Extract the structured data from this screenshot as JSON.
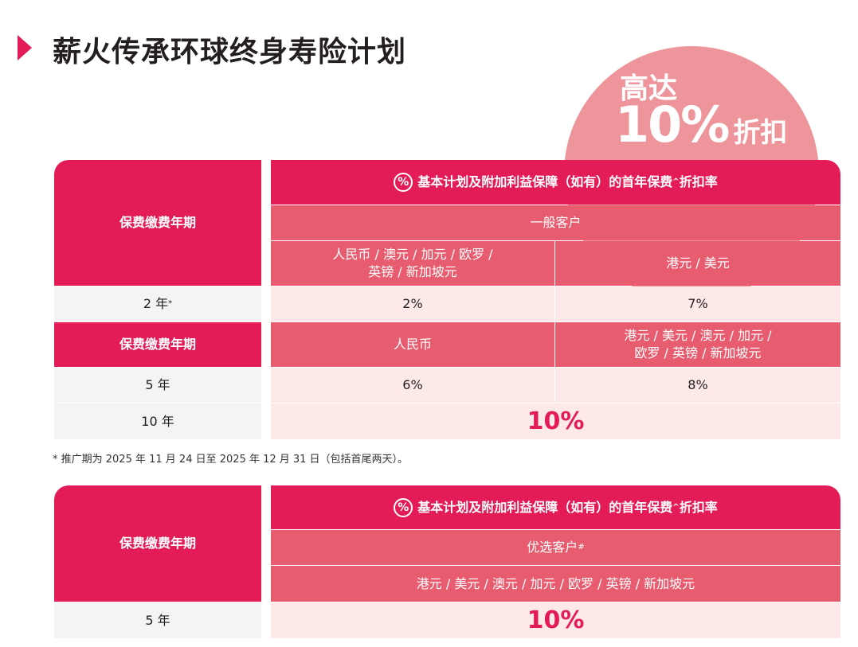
{
  "title": "薪火传承环球终身寿险计划",
  "badge": {
    "line1": "高达",
    "rate": "10%",
    "suffix": "折扣"
  },
  "table1": {
    "left_header": "保费缴费年期",
    "icon": "percent-icon",
    "main_header": "基本计划及附加利益保障（如有）的首年保费",
    "main_header_sup": "^",
    "main_header_suffix": "折扣率",
    "customer_type": "一般客户",
    "currency_a": "人民币 / 澳元 / 加元 / 欧罗 /\n英镑 / 新加坡元",
    "currency_b": "港元 / 美元",
    "row_2y": {
      "term": "2 年",
      "term_sup": "*",
      "rate_a": "2%",
      "rate_b": "7%"
    },
    "mid_left_header": "保费缴费年期",
    "currency_c": "人民币",
    "currency_d": "港元 / 美元 / 澳元 / 加元 /\n欧罗 / 英镑 / 新加坡元",
    "row_5y": {
      "term": "5 年",
      "rate_a": "6%",
      "rate_b": "8%"
    },
    "row_10y": {
      "term": "10 年",
      "rate": "10%"
    }
  },
  "footnote": "* 推广期为 2025 年 11 月 24 日至 2025 年 12 月 31 日（包括首尾两天）。",
  "table2": {
    "left_header": "保费缴费年期",
    "icon": "percent-icon",
    "main_header": "基本计划及附加利益保障（如有）的首年保费",
    "main_header_sup": "^",
    "main_header_suffix": "折扣率",
    "customer_type": "优选客户",
    "customer_type_sup": "#",
    "currency": "港元 / 美元 / 澳元 / 加元 / 欧罗 / 英镑 / 新加坡元",
    "row_5y": {
      "term": "5 年",
      "rate": "10%"
    }
  },
  "colors": {
    "accent": "#e31c57",
    "rose": "#e85c6f",
    "badge": "#ee959b",
    "light_row": "#fde9e8"
  }
}
